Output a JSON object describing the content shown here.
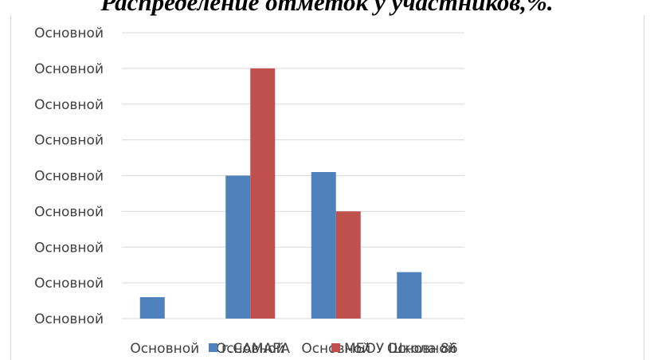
{
  "chart_data": {
    "type": "bar",
    "title": "Распределение отметок у участников,%.",
    "categories": [
      "Основной",
      "Основной",
      "Основной",
      "Основной"
    ],
    "series": [
      {
        "name": "г.САМАРА",
        "color": "#4f81bd",
        "values": [
          6,
          40,
          41,
          13
        ]
      },
      {
        "name": "МБОУ Школа 86",
        "color": "#c0504d",
        "values": [
          0,
          70,
          30,
          0
        ]
      }
    ],
    "ylim": [
      0,
      80
    ],
    "y_step": 10,
    "y_tick_labels": [
      "Основной",
      "Основной",
      "Основной",
      "Основной",
      "Основной",
      "Основной",
      "Основной",
      "Основной",
      "Основной"
    ],
    "grid": true,
    "legend_position": "bottom",
    "gridline_color": "#d9d9d9",
    "text_color": "#404040"
  }
}
